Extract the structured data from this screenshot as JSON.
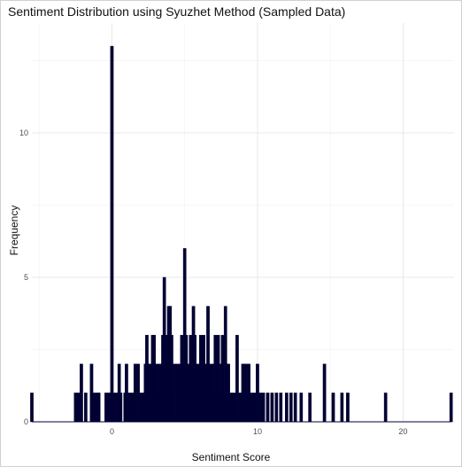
{
  "chart_data": {
    "type": "bar",
    "title": "Sentiment Distribution using Syuzhet Method (Sampled Data)",
    "xlabel": "Sentiment Score",
    "ylabel": "Frequency",
    "xlim": [
      -5.5,
      23.5
    ],
    "ylim": [
      0,
      13.8
    ],
    "x_ticks": [
      0,
      10,
      20
    ],
    "y_ticks": [
      0,
      5,
      10
    ],
    "grid": true,
    "bar_color": "#000033",
    "bar_width": 0.2,
    "bins": [
      {
        "x": -5.5,
        "y": 1
      },
      {
        "x": -2.5,
        "y": 1
      },
      {
        "x": -2.3,
        "y": 1
      },
      {
        "x": -2.1,
        "y": 2
      },
      {
        "x": -1.8,
        "y": 1
      },
      {
        "x": -1.4,
        "y": 2
      },
      {
        "x": -1.2,
        "y": 1
      },
      {
        "x": -1.0,
        "y": 1
      },
      {
        "x": -0.9,
        "y": 1
      },
      {
        "x": -0.4,
        "y": 1
      },
      {
        "x": -0.2,
        "y": 1
      },
      {
        "x": 0.0,
        "y": 13
      },
      {
        "x": 0.2,
        "y": 1
      },
      {
        "x": 0.4,
        "y": 1
      },
      {
        "x": 0.5,
        "y": 2
      },
      {
        "x": 0.6,
        "y": 1
      },
      {
        "x": 0.9,
        "y": 1
      },
      {
        "x": 1.0,
        "y": 2
      },
      {
        "x": 1.2,
        "y": 1
      },
      {
        "x": 1.4,
        "y": 1
      },
      {
        "x": 1.6,
        "y": 2
      },
      {
        "x": 1.8,
        "y": 2
      },
      {
        "x": 2.0,
        "y": 1
      },
      {
        "x": 2.2,
        "y": 1
      },
      {
        "x": 2.3,
        "y": 2
      },
      {
        "x": 2.4,
        "y": 3
      },
      {
        "x": 2.5,
        "y": 2
      },
      {
        "x": 2.6,
        "y": 1
      },
      {
        "x": 2.7,
        "y": 2
      },
      {
        "x": 2.8,
        "y": 3
      },
      {
        "x": 2.9,
        "y": 3
      },
      {
        "x": 3.0,
        "y": 2
      },
      {
        "x": 3.1,
        "y": 1
      },
      {
        "x": 3.2,
        "y": 2
      },
      {
        "x": 3.3,
        "y": 1
      },
      {
        "x": 3.4,
        "y": 2
      },
      {
        "x": 3.5,
        "y": 3
      },
      {
        "x": 3.6,
        "y": 5
      },
      {
        "x": 3.7,
        "y": 2
      },
      {
        "x": 3.8,
        "y": 3
      },
      {
        "x": 3.9,
        "y": 4
      },
      {
        "x": 4.0,
        "y": 4
      },
      {
        "x": 4.1,
        "y": 3
      },
      {
        "x": 4.2,
        "y": 1
      },
      {
        "x": 4.3,
        "y": 2
      },
      {
        "x": 4.5,
        "y": 2
      },
      {
        "x": 4.6,
        "y": 1
      },
      {
        "x": 4.7,
        "y": 2
      },
      {
        "x": 4.8,
        "y": 3
      },
      {
        "x": 4.9,
        "y": 2
      },
      {
        "x": 5.0,
        "y": 6
      },
      {
        "x": 5.1,
        "y": 3
      },
      {
        "x": 5.2,
        "y": 2
      },
      {
        "x": 5.3,
        "y": 1
      },
      {
        "x": 5.4,
        "y": 3
      },
      {
        "x": 5.5,
        "y": 2
      },
      {
        "x": 5.6,
        "y": 4
      },
      {
        "x": 5.7,
        "y": 3
      },
      {
        "x": 5.8,
        "y": 2
      },
      {
        "x": 5.9,
        "y": 1
      },
      {
        "x": 6.0,
        "y": 2
      },
      {
        "x": 6.1,
        "y": 3
      },
      {
        "x": 6.2,
        "y": 2
      },
      {
        "x": 6.3,
        "y": 3
      },
      {
        "x": 6.4,
        "y": 1
      },
      {
        "x": 6.5,
        "y": 2
      },
      {
        "x": 6.6,
        "y": 4
      },
      {
        "x": 6.7,
        "y": 2
      },
      {
        "x": 6.8,
        "y": 1
      },
      {
        "x": 6.9,
        "y": 2
      },
      {
        "x": 7.0,
        "y": 1
      },
      {
        "x": 7.1,
        "y": 3
      },
      {
        "x": 7.2,
        "y": 2
      },
      {
        "x": 7.3,
        "y": 3
      },
      {
        "x": 7.4,
        "y": 1
      },
      {
        "x": 7.5,
        "y": 2
      },
      {
        "x": 7.6,
        "y": 3
      },
      {
        "x": 7.7,
        "y": 1
      },
      {
        "x": 7.8,
        "y": 4
      },
      {
        "x": 7.9,
        "y": 2
      },
      {
        "x": 8.0,
        "y": 2
      },
      {
        "x": 8.2,
        "y": 1
      },
      {
        "x": 8.4,
        "y": 1
      },
      {
        "x": 8.6,
        "y": 3
      },
      {
        "x": 8.8,
        "y": 1
      },
      {
        "x": 9.0,
        "y": 2
      },
      {
        "x": 9.2,
        "y": 2
      },
      {
        "x": 9.3,
        "y": 1
      },
      {
        "x": 9.4,
        "y": 2
      },
      {
        "x": 9.6,
        "y": 1
      },
      {
        "x": 9.8,
        "y": 1
      },
      {
        "x": 10.0,
        "y": 2
      },
      {
        "x": 10.2,
        "y": 1
      },
      {
        "x": 10.4,
        "y": 1
      },
      {
        "x": 10.7,
        "y": 1
      },
      {
        "x": 11.0,
        "y": 1
      },
      {
        "x": 11.3,
        "y": 1
      },
      {
        "x": 11.6,
        "y": 1
      },
      {
        "x": 12.0,
        "y": 1
      },
      {
        "x": 12.3,
        "y": 1
      },
      {
        "x": 12.6,
        "y": 1
      },
      {
        "x": 13.0,
        "y": 1
      },
      {
        "x": 13.6,
        "y": 1
      },
      {
        "x": 14.6,
        "y": 2
      },
      {
        "x": 15.2,
        "y": 1
      },
      {
        "x": 15.8,
        "y": 1
      },
      {
        "x": 16.2,
        "y": 1
      },
      {
        "x": 18.8,
        "y": 1
      },
      {
        "x": 23.3,
        "y": 1
      }
    ]
  }
}
